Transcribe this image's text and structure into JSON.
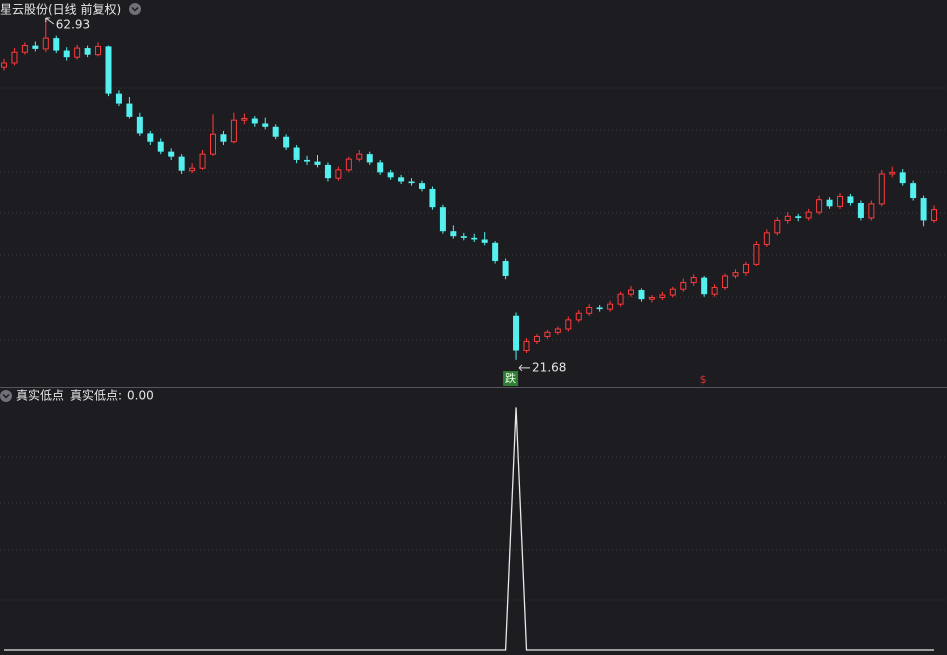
{
  "chart_data": {
    "type": "candlestick",
    "title": "星云股份(日线 前复权)",
    "up_color": "#ff3b3b",
    "down_color": "#54f0f0",
    "ylim": [
      18.4,
      65.1
    ],
    "candles": [
      [
        57.0,
        58.0,
        56.6,
        57.5
      ],
      [
        57.5,
        59.3,
        57.2,
        58.8
      ],
      [
        58.8,
        60.0,
        58.5,
        59.6
      ],
      [
        59.6,
        60.1,
        58.9,
        59.2
      ],
      [
        59.2,
        62.93,
        58.8,
        60.5
      ],
      [
        60.5,
        60.8,
        58.7,
        59.0
      ],
      [
        59.0,
        59.4,
        57.8,
        58.2
      ],
      [
        58.2,
        59.7,
        57.9,
        59.3
      ],
      [
        59.3,
        59.6,
        58.2,
        58.5
      ],
      [
        58.5,
        60.0,
        58.3,
        59.5
      ],
      [
        59.5,
        59.6,
        53.5,
        53.8
      ],
      [
        53.8,
        54.2,
        52.3,
        52.6
      ],
      [
        52.6,
        53.4,
        50.8,
        51.0
      ],
      [
        51.0,
        51.5,
        48.7,
        49.0
      ],
      [
        49.0,
        49.3,
        47.6,
        48.0
      ],
      [
        48.0,
        48.4,
        46.5,
        46.8
      ],
      [
        46.8,
        47.2,
        45.8,
        46.2
      ],
      [
        46.2,
        46.5,
        44.1,
        44.5
      ],
      [
        44.5,
        45.4,
        44.2,
        44.8
      ],
      [
        44.8,
        47.0,
        44.6,
        46.5
      ],
      [
        46.5,
        51.3,
        46.3,
        48.9
      ],
      [
        48.9,
        49.3,
        47.6,
        48.0
      ],
      [
        48.0,
        51.5,
        47.8,
        50.6
      ],
      [
        50.6,
        51.4,
        50.1,
        50.8
      ],
      [
        50.8,
        51.1,
        49.8,
        50.2
      ],
      [
        50.2,
        50.9,
        49.5,
        49.8
      ],
      [
        49.8,
        50.1,
        48.3,
        48.6
      ],
      [
        48.6,
        48.9,
        47.0,
        47.3
      ],
      [
        47.3,
        47.6,
        45.4,
        45.8
      ],
      [
        45.8,
        46.3,
        45.2,
        45.6
      ],
      [
        45.6,
        46.4,
        44.9,
        45.2
      ],
      [
        45.2,
        45.5,
        43.2,
        43.6
      ],
      [
        43.6,
        45.0,
        43.3,
        44.6
      ],
      [
        44.6,
        46.2,
        44.3,
        45.9
      ],
      [
        45.9,
        47.0,
        45.6,
        46.5
      ],
      [
        46.5,
        46.8,
        45.2,
        45.5
      ],
      [
        45.5,
        45.8,
        44.0,
        44.3
      ],
      [
        44.3,
        44.6,
        43.4,
        43.7
      ],
      [
        43.7,
        44.0,
        42.9,
        43.2
      ],
      [
        43.2,
        43.6,
        42.7,
        43.0
      ],
      [
        43.0,
        43.3,
        42.0,
        42.3
      ],
      [
        42.3,
        42.6,
        39.8,
        40.1
      ],
      [
        40.1,
        40.4,
        36.9,
        37.2
      ],
      [
        37.2,
        37.9,
        36.3,
        36.6
      ],
      [
        36.6,
        37.0,
        36.1,
        36.4
      ],
      [
        36.4,
        36.9,
        35.9,
        36.2
      ],
      [
        36.2,
        37.1,
        35.5,
        35.8
      ],
      [
        35.8,
        36.0,
        33.3,
        33.6
      ],
      [
        33.6,
        33.9,
        31.4,
        31.8
      ],
      [
        27.0,
        27.4,
        21.68,
        22.8
      ],
      [
        22.8,
        24.3,
        22.5,
        23.9
      ],
      [
        23.9,
        24.8,
        23.6,
        24.5
      ],
      [
        24.5,
        25.3,
        24.2,
        25.0
      ],
      [
        25.0,
        25.7,
        24.7,
        25.4
      ],
      [
        25.4,
        26.9,
        25.1,
        26.5
      ],
      [
        26.5,
        27.7,
        26.2,
        27.3
      ],
      [
        27.3,
        28.4,
        27.0,
        28.0
      ],
      [
        28.0,
        28.3,
        27.5,
        27.8
      ],
      [
        27.8,
        28.8,
        27.5,
        28.4
      ],
      [
        28.4,
        29.9,
        28.1,
        29.6
      ],
      [
        29.6,
        30.6,
        29.3,
        30.1
      ],
      [
        30.1,
        30.3,
        28.7,
        29.0
      ],
      [
        29.0,
        29.5,
        28.6,
        29.2
      ],
      [
        29.2,
        29.9,
        28.9,
        29.5
      ],
      [
        29.5,
        30.5,
        29.2,
        30.2
      ],
      [
        30.2,
        31.5,
        29.9,
        31.0
      ],
      [
        31.0,
        32.0,
        30.6,
        31.6
      ],
      [
        31.6,
        31.8,
        29.3,
        29.6
      ],
      [
        29.6,
        30.8,
        29.3,
        30.4
      ],
      [
        30.4,
        32.1,
        30.1,
        31.8
      ],
      [
        31.8,
        32.6,
        31.5,
        32.2
      ],
      [
        32.2,
        33.5,
        31.8,
        33.2
      ],
      [
        33.2,
        36.0,
        33.0,
        35.6
      ],
      [
        35.6,
        37.4,
        35.3,
        37.0
      ],
      [
        37.0,
        38.9,
        36.7,
        38.5
      ],
      [
        38.5,
        39.5,
        38.1,
        39.0
      ],
      [
        39.0,
        39.3,
        38.4,
        38.8
      ],
      [
        38.8,
        39.9,
        38.5,
        39.5
      ],
      [
        39.5,
        41.5,
        39.2,
        41.0
      ],
      [
        41.0,
        41.3,
        39.9,
        40.2
      ],
      [
        40.2,
        41.8,
        39.9,
        41.4
      ],
      [
        41.4,
        41.7,
        40.3,
        40.6
      ],
      [
        40.6,
        40.9,
        38.5,
        38.8
      ],
      [
        38.8,
        40.9,
        38.5,
        40.5
      ],
      [
        40.5,
        44.6,
        40.2,
        44.1
      ],
      [
        44.1,
        45.0,
        43.7,
        44.3
      ],
      [
        44.3,
        44.7,
        42.7,
        43.0
      ],
      [
        43.0,
        43.3,
        40.9,
        41.2
      ],
      [
        41.2,
        41.5,
        37.8,
        38.5
      ],
      [
        38.5,
        40.3,
        38.2,
        39.8
      ]
    ],
    "signals": [
      null,
      null,
      null,
      null,
      null,
      null,
      null,
      null,
      null,
      null,
      null,
      null,
      null,
      null,
      null,
      null,
      null,
      null,
      null,
      null,
      null,
      null,
      null,
      null,
      null,
      null,
      null,
      null,
      null,
      null,
      null,
      null,
      null,
      null,
      null,
      null,
      null,
      null,
      null,
      null,
      null,
      null,
      null,
      null,
      null,
      null,
      null,
      null,
      null,
      "跌",
      null,
      null,
      null,
      null,
      null,
      null,
      null,
      null,
      null,
      null,
      null,
      null,
      null,
      null,
      null,
      null,
      null,
      "$",
      null,
      null,
      null,
      null,
      null,
      null,
      null,
      null,
      null,
      null,
      null,
      null,
      null,
      null,
      null,
      null,
      null,
      null,
      null,
      null,
      null,
      null
    ],
    "indicator": {
      "title": "真实低点",
      "name": "真实低点:",
      "current": {
        "value": 0,
        "label": "0.00"
      },
      "color": "#e8e8e8",
      "ylim": [
        0,
        1.08
      ],
      "values": [
        0,
        0,
        0,
        0,
        0,
        0,
        0,
        0,
        0,
        0,
        0,
        0,
        0,
        0,
        0,
        0,
        0,
        0,
        0,
        0,
        0,
        0,
        0,
        0,
        0,
        0,
        0,
        0,
        0,
        0,
        0,
        0,
        0,
        0,
        0,
        0,
        0,
        0,
        0,
        0,
        0,
        0,
        0,
        0,
        0,
        0,
        0,
        0,
        0,
        1,
        0,
        0,
        0,
        0,
        0,
        0,
        0,
        0,
        0,
        0,
        0,
        0,
        0,
        0,
        0,
        0,
        0,
        0,
        0,
        0,
        0,
        0,
        0,
        0,
        0,
        0,
        0,
        0,
        0,
        0,
        0,
        0,
        0,
        0,
        0,
        0,
        0,
        0,
        0,
        0
      ]
    }
  }
}
